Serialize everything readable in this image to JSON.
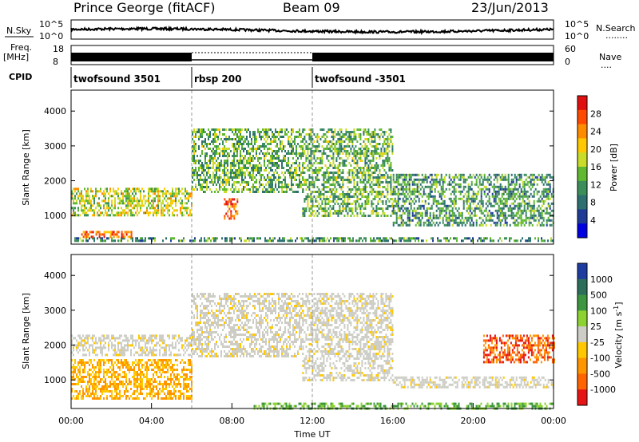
{
  "header": {
    "station": "Prince George (fitACF)",
    "beam": "Beam 09",
    "date": "23/Jun/2013"
  },
  "strip_labels": {
    "nsky": "N.Sky",
    "nsearch": "N.Search",
    "nsearch_line": "........",
    "freq_top": "Freq.",
    "freq_unit": "[MHz]",
    "nave": "Nave",
    "nave_line": "....",
    "cpid": "CPID"
  },
  "noise_axis": {
    "left_ticks": [
      "10^5",
      "10^0"
    ],
    "right_ticks": [
      "10^5",
      "10^0"
    ]
  },
  "freq_axis": {
    "left_ticks": [
      "18",
      "8"
    ],
    "right_ticks": [
      "60",
      "0"
    ]
  },
  "cpid_segments": [
    {
      "label": "twofsound 3501",
      "start_hour": 0,
      "end_hour": 6.0
    },
    {
      "label": "rbsp 200",
      "start_hour": 6.0,
      "end_hour": 12.0
    },
    {
      "label": "twofsound -3501",
      "start_hour": 12.0,
      "end_hour": 24.0
    }
  ],
  "chart_data": [
    {
      "type": "heatmap",
      "name": "power",
      "xlabel": "Time UT",
      "ylabel": "Slant Range [km]",
      "xlim": [
        0,
        24
      ],
      "ylim": [
        180,
        4600
      ],
      "y_ticks": [
        1000,
        2000,
        3000,
        4000
      ],
      "x_ticks": [
        "00:00",
        "04:00",
        "08:00",
        "12:00",
        "16:00",
        "20:00",
        "00:00"
      ],
      "colorbar": {
        "label": "Power [dB]",
        "ticks": [
          "28",
          "24",
          "20",
          "16",
          "12",
          "8",
          "4"
        ],
        "colors": [
          "#e01010",
          "#ff4a00",
          "#ff8c00",
          "#ffc800",
          "#c8dc28",
          "#5fb830",
          "#3c8f5a",
          "#2e7070",
          "#1e3c96",
          "#0000e0"
        ]
      },
      "bands": [
        {
          "start_hour": 0.0,
          "end_hour": 24.0,
          "range_km": [
            300,
            380
          ],
          "level": 12
        },
        {
          "start_hour": 0.5,
          "end_hour": 3.0,
          "range_km": [
            380,
            560
          ],
          "level": 26
        },
        {
          "start_hour": 0.0,
          "end_hour": 6.0,
          "range_km": [
            1000,
            1800
          ],
          "level": 18
        },
        {
          "start_hour": 6.0,
          "end_hour": 11.5,
          "range_km": [
            1700,
            3500
          ],
          "level": 14
        },
        {
          "start_hour": 7.6,
          "end_hour": 8.3,
          "range_km": [
            900,
            1500
          ],
          "level": 26
        },
        {
          "start_hour": 11.5,
          "end_hour": 16.0,
          "range_km": [
            1000,
            3500
          ],
          "level": 14
        },
        {
          "start_hour": 16.0,
          "end_hour": 24.0,
          "range_km": [
            700,
            2200
          ],
          "level": 12
        }
      ]
    },
    {
      "type": "heatmap",
      "name": "velocity",
      "xlabel": "Time UT",
      "ylabel": "Slant Range [km]",
      "xlim": [
        0,
        24
      ],
      "ylim": [
        180,
        4600
      ],
      "y_ticks": [
        1000,
        2000,
        3000,
        4000
      ],
      "x_ticks": [
        "00:00",
        "04:00",
        "08:00",
        "12:00",
        "16:00",
        "20:00",
        "00:00"
      ],
      "colorbar": {
        "label": "Velocity [m s^-1]",
        "ticks": [
          "1000",
          "500",
          "100",
          "25",
          "-25",
          "-100",
          "-500",
          "-1000"
        ],
        "colors": [
          "#1e3ca0",
          "#2d6e5a",
          "#3c9640",
          "#8cd232",
          "#cdcdc6",
          "#ffc800",
          "#ff9600",
          "#ff6400",
          "#e61414"
        ]
      },
      "bands": [
        {
          "start_hour": 0.0,
          "end_hour": 6.0,
          "range_km": [
            1700,
            2300
          ],
          "velocity": 0
        },
        {
          "start_hour": 0.0,
          "end_hour": 6.0,
          "range_km": [
            500,
            1600
          ],
          "velocity": -200
        },
        {
          "start_hour": 6.0,
          "end_hour": 11.5,
          "range_km": [
            1700,
            3500
          ],
          "velocity": 0
        },
        {
          "start_hour": 11.5,
          "end_hour": 16.0,
          "range_km": [
            1000,
            3500
          ],
          "velocity": 0
        },
        {
          "start_hour": 16.0,
          "end_hour": 24.0,
          "range_km": [
            800,
            1100
          ],
          "velocity": 0
        },
        {
          "start_hour": 20.5,
          "end_hour": 24.0,
          "range_km": [
            1500,
            2300
          ],
          "velocity": -700
        },
        {
          "start_hour": 9.0,
          "end_hour": 24.0,
          "range_km": [
            200,
            350
          ],
          "velocity": 80
        }
      ]
    }
  ]
}
